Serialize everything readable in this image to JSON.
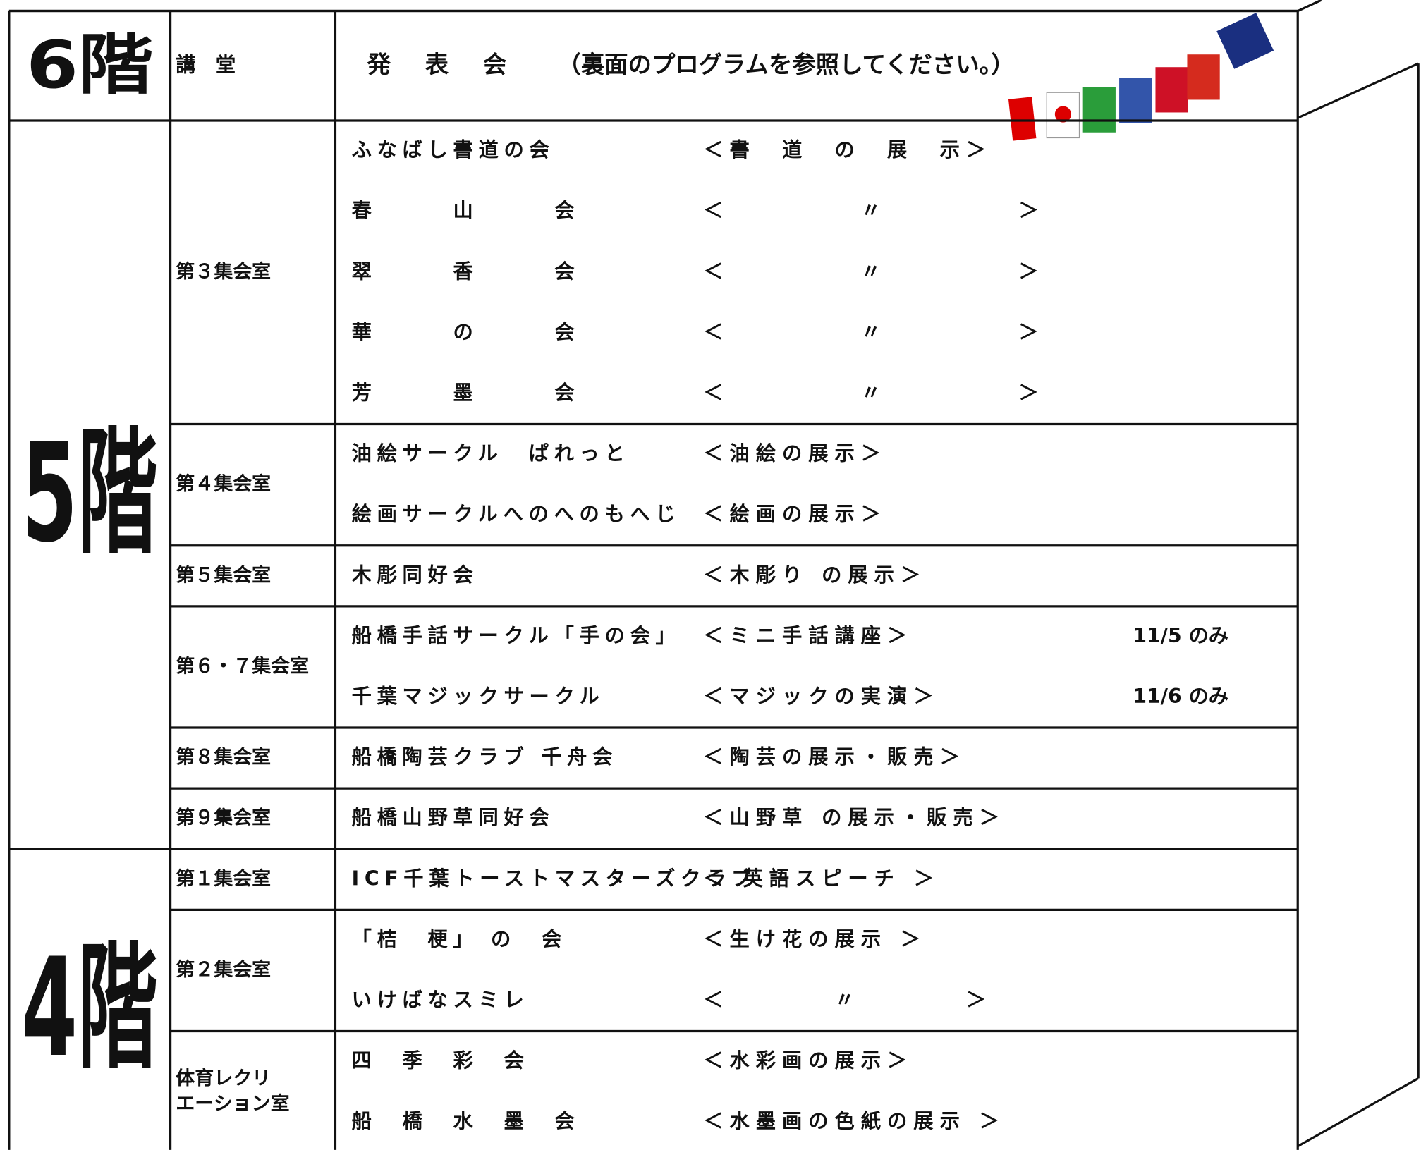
{
  "floors": [
    {
      "label": "6階",
      "rooms": [
        {
          "name": [
            "講　堂"
          ],
          "entries": [
            {
              "group": "発　表　会",
              "exhibit": "（裏面のプログラムを参照してください。）"
            }
          ]
        }
      ]
    },
    {
      "label": "5階",
      "rooms": [
        {
          "name": [
            "第３集会室"
          ],
          "entries": [
            {
              "group": "ふなばし書道の会",
              "exhibit": "＜書　道　の　展　示＞"
            },
            {
              "group": "春　　　山　　　会",
              "exhibit": "＜　　　　　〃　　　　　＞"
            },
            {
              "group": "翠　　　香　　　会",
              "exhibit": "＜　　　　　〃　　　　　＞"
            },
            {
              "group": "華　　　の　　　会",
              "exhibit": "＜　　　　　〃　　　　　＞"
            },
            {
              "group": "芳　　　墨　　　会",
              "exhibit": "＜　　　　　〃　　　　　＞"
            }
          ]
        },
        {
          "name": [
            "第４集会室"
          ],
          "entries": [
            {
              "group": "油絵サークル　ぱれっと",
              "exhibit": "＜油絵の展示＞"
            },
            {
              "group": "絵画サークルへのへのもへじ",
              "exhibit": "＜絵画の展示＞"
            }
          ]
        },
        {
          "name": [
            "第５集会室"
          ],
          "entries": [
            {
              "group": "木彫同好会",
              "exhibit": "＜木彫り の展示＞"
            }
          ]
        },
        {
          "name": [
            "第６・７集会室"
          ],
          "entries": [
            {
              "group": "船橋手話サークル「手の会」",
              "exhibit": "＜ミニ手話講座＞",
              "note": "11/5 のみ"
            },
            {
              "group": "千葉マジックサークル",
              "exhibit": "＜マジックの実演＞",
              "note": "11/6 のみ"
            }
          ]
        },
        {
          "name": [
            "第８集会室"
          ],
          "entries": [
            {
              "group": "船橋陶芸クラブ 千舟会",
              "exhibit": "＜陶芸の展示・販売＞"
            }
          ]
        },
        {
          "name": [
            "第９集会室"
          ],
          "entries": [
            {
              "group": "船橋山野草同好会",
              "exhibit": "＜山野草 の展示・販売＞"
            }
          ]
        }
      ]
    },
    {
      "label": "4階",
      "rooms": [
        {
          "name": [
            "第１集会室"
          ],
          "entries": [
            {
              "group": "ICF千葉トーストマスターズクラブ",
              "exhibit": "＜ 英語スピーチ ＞"
            }
          ]
        },
        {
          "name": [
            "第２集会室"
          ],
          "entries": [
            {
              "group": "「桔　梗」 の　会",
              "exhibit": "＜生け花の展示 ＞"
            },
            {
              "group": "いけばなスミレ",
              "exhibit": "＜　　　　〃　　　　＞"
            }
          ]
        },
        {
          "name": [
            "体育レクリ",
            "エーション室"
          ],
          "entries": [
            {
              "group": "四　季　彩　会",
              "exhibit": "＜水彩画の展示＞"
            },
            {
              "group": "船　橋　水　墨　会",
              "exhibit": "＜水墨画の色紙の展示 ＞"
            }
          ]
        }
      ]
    }
  ]
}
